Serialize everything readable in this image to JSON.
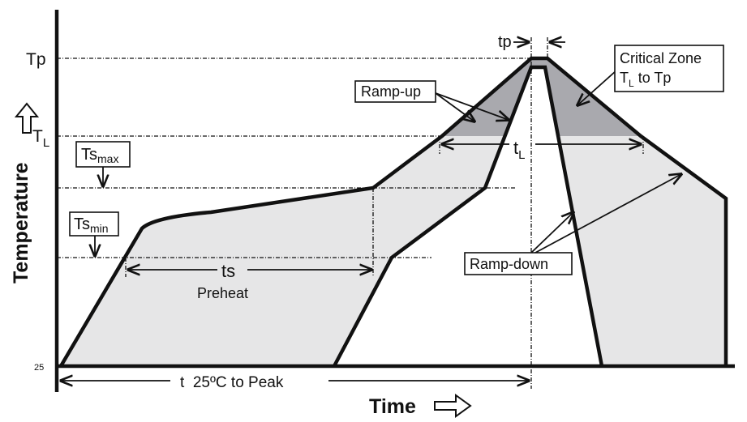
{
  "axes": {
    "y_label": "Temperature",
    "x_label": "Time",
    "baseline_label": "25"
  },
  "levels": {
    "tp": "Tp",
    "tl_main": "T",
    "tl_sub": "L",
    "tsmax_main": "Ts",
    "tsmax_sub": "max",
    "tsmin_main": "Ts",
    "tsmin_sub": "min"
  },
  "annotations": {
    "tp_duration": "tp",
    "tl_duration_main": "t",
    "tl_duration_sub": "L",
    "ts_duration": "ts",
    "preheat": "Preheat",
    "total_time": "t  25ºC to Peak",
    "ramp_up": "Ramp-up",
    "ramp_down": "Ramp-down",
    "critical_zone_line1": "Critical Zone",
    "critical_zone_line2_main": "T",
    "critical_zone_line2_sub": "L",
    "critical_zone_line2_rest": " to Tp"
  },
  "colors": {
    "profile_fill": "#e6e6e7",
    "critical_fill": "#a9a9ae",
    "line": "#111111"
  }
}
